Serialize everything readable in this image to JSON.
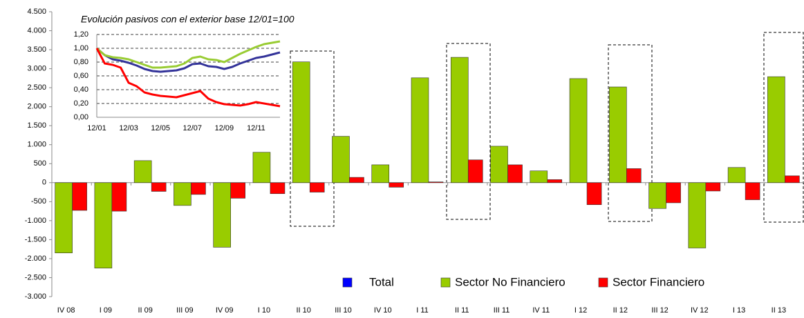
{
  "chart_data": [
    {
      "type": "bar",
      "categories": [
        "IV 08",
        "I 09",
        "II 09",
        "III 09",
        "IV 09",
        "I 10",
        "II 10",
        "III 10",
        "IV 10",
        "I 11",
        "II 11",
        "III 11",
        "IV 11",
        "I 12",
        "II 12",
        "III 12",
        "IV 12",
        "I 13",
        "II 13"
      ],
      "series": [
        {
          "name": "Sector No Financiero",
          "color": "#99cc00",
          "values": [
            -1850,
            -2250,
            580,
            -600,
            -1700,
            800,
            3180,
            1220,
            470,
            2760,
            3300,
            960,
            310,
            2740,
            2520,
            -680,
            -1720,
            400,
            2790
          ]
        },
        {
          "name": "Sector Financiero",
          "color": "#ff0000",
          "values": [
            -730,
            -750,
            -230,
            -310,
            -410,
            -290,
            -250,
            140,
            -120,
            20,
            600,
            470,
            80,
            -580,
            370,
            -530,
            -220,
            -450,
            180
          ]
        }
      ],
      "ylim": [
        -3000,
        4500
      ],
      "yticks": [
        {
          "value": -3000,
          "label": "-3.000"
        },
        {
          "value": -2500,
          "label": "-2.500"
        },
        {
          "value": -2000,
          "label": "-2.000"
        },
        {
          "value": -1500,
          "label": "-1.500"
        },
        {
          "value": -1000,
          "label": "-1.000"
        },
        -500,
        0,
        500,
        {
          "value": 1000,
          "label": "1.000"
        },
        {
          "value": 1500,
          "label": "1.500"
        },
        {
          "value": 2000,
          "label": "2.000"
        },
        {
          "value": 2500,
          "label": "2.500"
        },
        {
          "value": 3000,
          "label": "3.000"
        },
        {
          "value": 3500,
          "label": "3.500"
        },
        {
          "value": 4000,
          "label": "4.000"
        },
        {
          "value": 4500,
          "label": "4.500"
        }
      ]
    },
    {
      "type": "line",
      "title": "Evolución pasivos con el exterior base 12/01=100",
      "categories": [
        "12/01",
        null,
        null,
        null,
        "12/03",
        null,
        null,
        null,
        "12/05",
        null,
        null,
        null,
        "12/07",
        null,
        null,
        null,
        "12/09",
        null,
        null,
        null,
        "12/11",
        null,
        null,
        null
      ],
      "series": [
        {
          "name": "Total",
          "color": "#333399",
          "values": [
            1.0,
            0.9,
            0.84,
            0.82,
            0.79,
            0.75,
            0.7,
            0.67,
            0.66,
            0.67,
            0.68,
            0.71,
            0.77,
            0.78,
            0.74,
            0.73,
            0.7,
            0.73,
            0.78,
            0.82,
            0.86,
            0.88,
            0.91,
            0.94
          ]
        },
        {
          "name": "Sector No Financiero",
          "color": "#99cc33",
          "values": [
            1.0,
            0.9,
            0.87,
            0.86,
            0.84,
            0.8,
            0.76,
            0.72,
            0.72,
            0.73,
            0.74,
            0.78,
            0.86,
            0.88,
            0.84,
            0.83,
            0.8,
            0.86,
            0.92,
            0.97,
            1.02,
            1.06,
            1.08,
            1.1
          ]
        },
        {
          "name": "Sector Financiero",
          "color": "#ff0000",
          "values": [
            1.0,
            0.78,
            0.76,
            0.72,
            0.5,
            0.45,
            0.36,
            0.33,
            0.31,
            0.3,
            0.29,
            0.32,
            0.35,
            0.38,
            0.27,
            0.22,
            0.19,
            0.18,
            0.17,
            0.19,
            0.22,
            0.2,
            0.18,
            0.16
          ]
        }
      ],
      "ylim": [
        0,
        1.2
      ],
      "yticks": [
        {
          "value": 0,
          "label": "0,00"
        },
        {
          "value": 0.2,
          "label": "0,20"
        },
        {
          "value": 0.4,
          "label": "0,40"
        },
        {
          "value": 0.6,
          "label": "0,60"
        },
        {
          "value": 0.8,
          "label": "0,80"
        },
        {
          "value": 1,
          "label": "1,00"
        },
        {
          "value": 1.2,
          "label": "1,20"
        }
      ]
    }
  ]
}
